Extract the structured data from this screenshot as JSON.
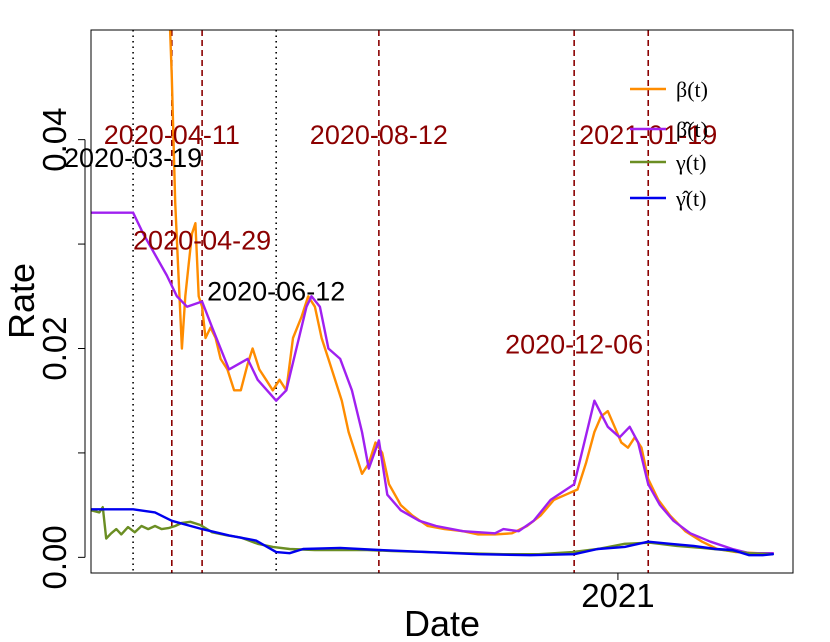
{
  "chart_data": {
    "type": "line",
    "title": "",
    "xlabel": "Date",
    "ylabel": "Rate",
    "x_range": [
      "2020-02-23",
      "2021-04-15"
    ],
    "ylim": [
      -0.0015,
      0.0505
    ],
    "y_ticks": [
      {
        "value": 0.0,
        "label": "0.00"
      },
      {
        "value": 0.02,
        "label": "0.02"
      },
      {
        "value": 0.04,
        "label": "0.04"
      }
    ],
    "x_ticks": [
      {
        "date": "2021-01-01",
        "label": "2021"
      }
    ],
    "legend_position": "top-right",
    "series": [
      {
        "name": "β(t)",
        "color": "#FF8C00",
        "points": [
          [
            "2020-04-09",
            0.055
          ],
          [
            "2020-04-11",
            0.046
          ],
          [
            "2020-04-13",
            0.034
          ],
          [
            "2020-04-15",
            0.027
          ],
          [
            "2020-04-17",
            0.02
          ],
          [
            "2020-04-19",
            0.025
          ],
          [
            "2020-04-21",
            0.028
          ],
          [
            "2020-04-23",
            0.031
          ],
          [
            "2020-04-25",
            0.032
          ],
          [
            "2020-04-27",
            0.025
          ],
          [
            "2020-04-29",
            0.024
          ],
          [
            "2020-05-01",
            0.021
          ],
          [
            "2020-05-04",
            0.022
          ],
          [
            "2020-05-07",
            0.021
          ],
          [
            "2020-05-10",
            0.019
          ],
          [
            "2020-05-14",
            0.018
          ],
          [
            "2020-05-18",
            0.016
          ],
          [
            "2020-05-22",
            0.016
          ],
          [
            "2020-05-26",
            0.0185
          ],
          [
            "2020-05-29",
            0.02
          ],
          [
            "2020-06-02",
            0.018
          ],
          [
            "2020-06-06",
            0.017
          ],
          [
            "2020-06-10",
            0.016
          ],
          [
            "2020-06-14",
            0.017
          ],
          [
            "2020-06-18",
            0.016
          ],
          [
            "2020-06-22",
            0.021
          ],
          [
            "2020-06-27",
            0.023
          ],
          [
            "2020-07-01",
            0.025
          ],
          [
            "2020-07-05",
            0.024
          ],
          [
            "2020-07-09",
            0.021
          ],
          [
            "2020-07-13",
            0.019
          ],
          [
            "2020-07-17",
            0.017
          ],
          [
            "2020-07-21",
            0.015
          ],
          [
            "2020-07-25",
            0.012
          ],
          [
            "2020-07-29",
            0.01
          ],
          [
            "2020-08-02",
            0.008
          ],
          [
            "2020-08-06",
            0.009
          ],
          [
            "2020-08-10",
            0.011
          ],
          [
            "2020-08-14",
            0.01
          ],
          [
            "2020-08-18",
            0.007
          ],
          [
            "2020-08-25",
            0.005
          ],
          [
            "2020-09-01",
            0.004
          ],
          [
            "2020-09-10",
            0.003
          ],
          [
            "2020-09-20",
            0.0027
          ],
          [
            "2020-10-01",
            0.0025
          ],
          [
            "2020-10-10",
            0.0022
          ],
          [
            "2020-10-20",
            0.0022
          ],
          [
            "2020-10-30",
            0.0023
          ],
          [
            "2020-11-08",
            0.003
          ],
          [
            "2020-11-16",
            0.004
          ],
          [
            "2020-11-24",
            0.0055
          ],
          [
            "2020-12-01",
            0.006
          ],
          [
            "2020-12-08",
            0.0065
          ],
          [
            "2020-12-13",
            0.009
          ],
          [
            "2020-12-18",
            0.012
          ],
          [
            "2020-12-22",
            0.0135
          ],
          [
            "2020-12-26",
            0.014
          ],
          [
            "2020-12-30",
            0.0125
          ],
          [
            "2021-01-03",
            0.011
          ],
          [
            "2021-01-07",
            0.0105
          ],
          [
            "2021-01-11",
            0.0115
          ],
          [
            "2021-01-15",
            0.0105
          ],
          [
            "2021-01-19",
            0.0075
          ],
          [
            "2021-01-25",
            0.0055
          ],
          [
            "2021-02-01",
            0.004
          ],
          [
            "2021-02-10",
            0.0025
          ],
          [
            "2021-02-20",
            0.0015
          ],
          [
            "2021-03-01",
            0.0008
          ],
          [
            "2021-03-12",
            0.0005
          ],
          [
            "2021-03-25",
            0.0004
          ],
          [
            "2021-04-03",
            0.0004
          ]
        ]
      },
      {
        "name": "β̂(t)",
        "color": "#A020F0",
        "points": [
          [
            "2020-02-23",
            0.033
          ],
          [
            "2020-03-19",
            0.033
          ],
          [
            "2020-03-25",
            0.031
          ],
          [
            "2020-04-01",
            0.029
          ],
          [
            "2020-04-08",
            0.027
          ],
          [
            "2020-04-14",
            0.025
          ],
          [
            "2020-04-20",
            0.024
          ],
          [
            "2020-04-29",
            0.0245
          ],
          [
            "2020-05-05",
            0.022
          ],
          [
            "2020-05-15",
            0.018
          ],
          [
            "2020-05-26",
            0.019
          ],
          [
            "2020-06-01",
            0.017
          ],
          [
            "2020-06-12",
            0.015
          ],
          [
            "2020-06-18",
            0.016
          ],
          [
            "2020-06-24",
            0.02
          ],
          [
            "2020-06-30",
            0.024
          ],
          [
            "2020-07-03",
            0.025
          ],
          [
            "2020-07-08",
            0.024
          ],
          [
            "2020-07-13",
            0.02
          ],
          [
            "2020-07-20",
            0.019
          ],
          [
            "2020-07-27",
            0.016
          ],
          [
            "2020-08-02",
            0.012
          ],
          [
            "2020-08-06",
            0.0085
          ],
          [
            "2020-08-12",
            0.0112
          ],
          [
            "2020-08-17",
            0.006
          ],
          [
            "2020-08-25",
            0.0045
          ],
          [
            "2020-09-05",
            0.0035
          ],
          [
            "2020-09-15",
            0.003
          ],
          [
            "2020-10-01",
            0.0025
          ],
          [
            "2020-10-20",
            0.0023
          ],
          [
            "2020-10-25",
            0.0027
          ],
          [
            "2020-11-03",
            0.0025
          ],
          [
            "2020-11-12",
            0.0035
          ],
          [
            "2020-11-22",
            0.0055
          ],
          [
            "2020-12-06",
            0.007
          ],
          [
            "2020-12-12",
            0.011
          ],
          [
            "2020-12-18",
            0.015
          ],
          [
            "2020-12-26",
            0.0125
          ],
          [
            "2021-01-02",
            0.0115
          ],
          [
            "2021-01-08",
            0.0125
          ],
          [
            "2021-01-13",
            0.011
          ],
          [
            "2021-01-19",
            0.007
          ],
          [
            "2021-01-26",
            0.005
          ],
          [
            "2021-02-03",
            0.0035
          ],
          [
            "2021-02-13",
            0.0023
          ],
          [
            "2021-02-25",
            0.0015
          ],
          [
            "2021-03-10",
            0.0008
          ],
          [
            "2021-03-20",
            0.0004
          ],
          [
            "2021-04-03",
            0.0004
          ]
        ]
      },
      {
        "name": "γ(t)",
        "color": "#6B8E23",
        "points": [
          [
            "2020-02-23",
            0.0045
          ],
          [
            "2020-02-28",
            0.0043
          ],
          [
            "2020-03-01",
            0.0048
          ],
          [
            "2020-03-03",
            0.0018
          ],
          [
            "2020-03-06",
            0.0023
          ],
          [
            "2020-03-09",
            0.0027
          ],
          [
            "2020-03-12",
            0.0022
          ],
          [
            "2020-03-16",
            0.0029
          ],
          [
            "2020-03-20",
            0.0024
          ],
          [
            "2020-03-24",
            0.003
          ],
          [
            "2020-03-28",
            0.0027
          ],
          [
            "2020-04-01",
            0.003
          ],
          [
            "2020-04-05",
            0.0027
          ],
          [
            "2020-04-09",
            0.0028
          ],
          [
            "2020-04-13",
            0.003
          ],
          [
            "2020-04-17",
            0.0033
          ],
          [
            "2020-04-22",
            0.0034
          ],
          [
            "2020-04-28",
            0.0031
          ],
          [
            "2020-05-05",
            0.0024
          ],
          [
            "2020-05-14",
            0.0021
          ],
          [
            "2020-05-22",
            0.0019
          ],
          [
            "2020-06-01",
            0.0013
          ],
          [
            "2020-06-10",
            0.001
          ],
          [
            "2020-06-20",
            0.0008
          ],
          [
            "2020-07-05",
            0.0007
          ],
          [
            "2020-07-20",
            0.0007
          ],
          [
            "2020-08-05",
            0.0007
          ],
          [
            "2020-08-20",
            0.0006
          ],
          [
            "2020-09-10",
            0.0005
          ],
          [
            "2020-10-01",
            0.0004
          ],
          [
            "2020-10-25",
            0.0003
          ],
          [
            "2020-11-15",
            0.0003
          ],
          [
            "2020-12-05",
            0.0005
          ],
          [
            "2020-12-20",
            0.0008
          ],
          [
            "2021-01-05",
            0.0013
          ],
          [
            "2021-01-20",
            0.0014
          ],
          [
            "2021-02-05",
            0.0011
          ],
          [
            "2021-02-20",
            0.0009
          ],
          [
            "2021-03-05",
            0.0007
          ],
          [
            "2021-03-20",
            0.0004
          ],
          [
            "2021-04-03",
            0.0003
          ]
        ]
      },
      {
        "name": "γ̂(t)",
        "color": "#0000EE",
        "points": [
          [
            "2020-02-23",
            0.0046
          ],
          [
            "2020-03-19",
            0.0046
          ],
          [
            "2020-04-01",
            0.0043
          ],
          [
            "2020-04-11",
            0.0035
          ],
          [
            "2020-04-29",
            0.0027
          ],
          [
            "2020-05-15",
            0.0021
          ],
          [
            "2020-05-31",
            0.0016
          ],
          [
            "2020-06-12",
            0.0005
          ],
          [
            "2020-06-20",
            0.0004
          ],
          [
            "2020-06-28",
            0.0008
          ],
          [
            "2020-07-20",
            0.0009
          ],
          [
            "2020-08-12",
            0.0007
          ],
          [
            "2020-09-10",
            0.0005
          ],
          [
            "2020-10-10",
            0.0003
          ],
          [
            "2020-11-10",
            0.0002
          ],
          [
            "2020-12-06",
            0.0003
          ],
          [
            "2020-12-20",
            0.0008
          ],
          [
            "2021-01-05",
            0.001
          ],
          [
            "2021-01-19",
            0.0015
          ],
          [
            "2021-02-01",
            0.0013
          ],
          [
            "2021-02-15",
            0.0011
          ],
          [
            "2021-02-28",
            0.0008
          ],
          [
            "2021-03-10",
            0.0007
          ],
          [
            "2021-03-20",
            0.0002
          ],
          [
            "2021-03-28",
            0.0002
          ],
          [
            "2021-04-03",
            0.0003
          ]
        ]
      }
    ],
    "vlines": [
      {
        "date": "2020-03-19",
        "style": "dotted",
        "color": "#000000",
        "label": "2020-03-19",
        "label_color": "#000000",
        "label_y": 0.0374
      },
      {
        "date": "2020-04-11",
        "style": "dashed",
        "color": "#8B0000",
        "label": "2020-04-11",
        "label_color": "#8B0000",
        "label_y": 0.0396
      },
      {
        "date": "2020-04-29",
        "style": "dashed",
        "color": "#8B0000",
        "label": "2020-04-29",
        "label_color": "#8B0000",
        "label_y": 0.0295
      },
      {
        "date": "2020-06-12",
        "style": "dotted",
        "color": "#000000",
        "label": "2020-06-12",
        "label_color": "#000000",
        "label_y": 0.0246
      },
      {
        "date": "2020-08-12",
        "style": "dashed",
        "color": "#8B0000",
        "label": "2020-08-12",
        "label_color": "#8B0000",
        "label_y": 0.0396
      },
      {
        "date": "2020-12-06",
        "style": "dashed",
        "color": "#8B0000",
        "label": "2020-12-06",
        "label_color": "#8B0000",
        "label_y": 0.0195
      },
      {
        "date": "2021-01-19",
        "style": "dashed",
        "color": "#8B0000",
        "label": "2021-01-19",
        "label_color": "#8B0000",
        "label_y": 0.0396
      }
    ]
  }
}
